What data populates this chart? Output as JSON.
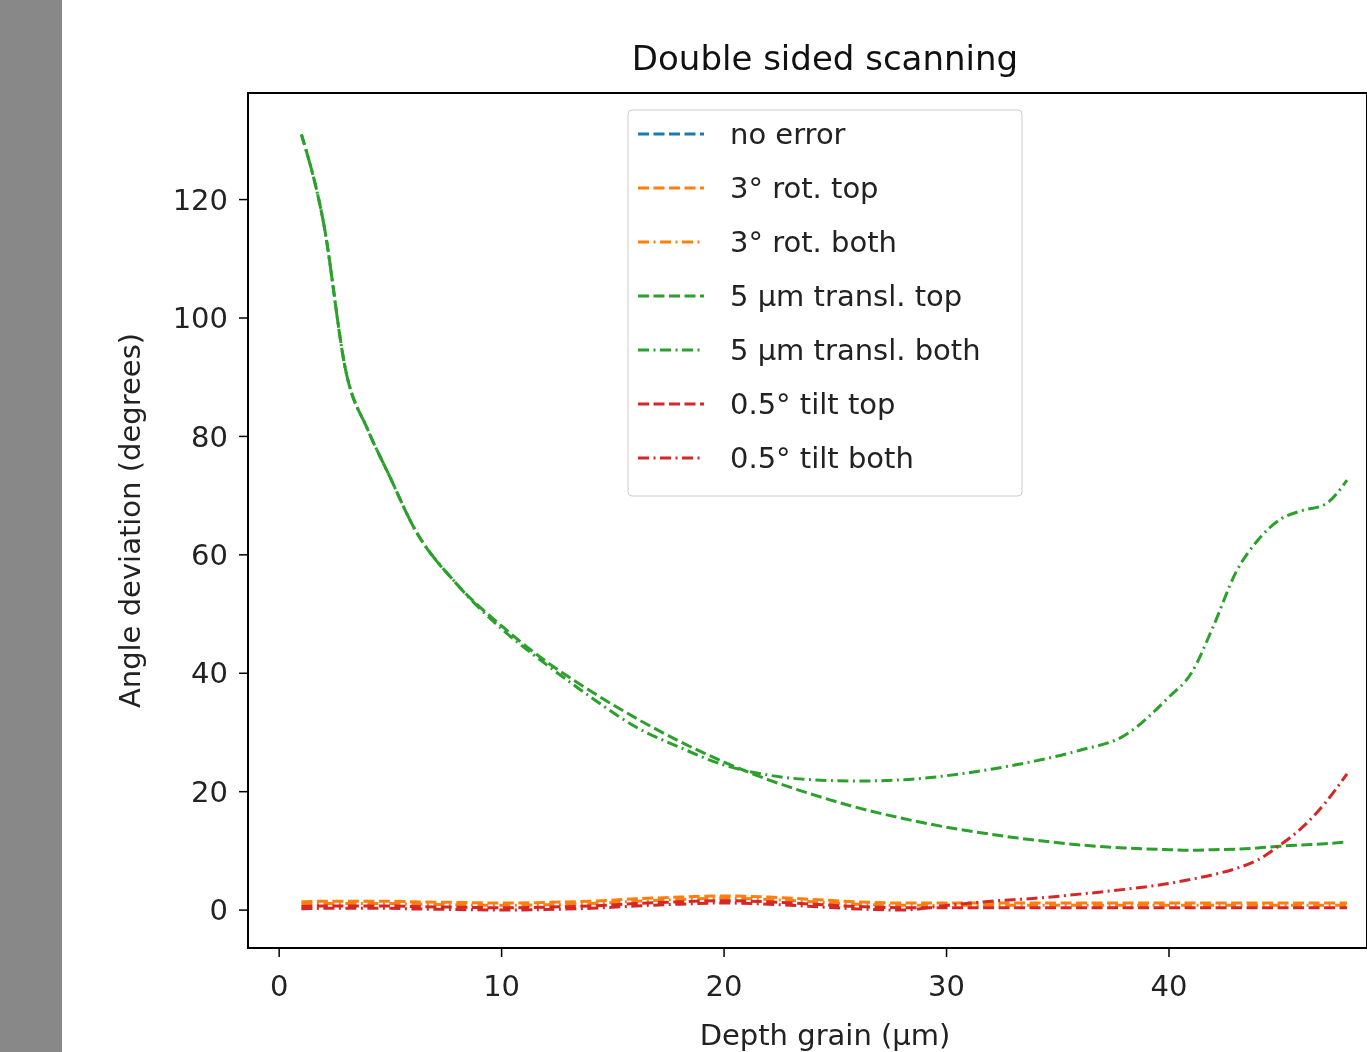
{
  "chart_data": {
    "type": "line",
    "title": "Double sided scanning",
    "xlabel": "Depth grain (μm)",
    "ylabel": "Angle deviation (degrees)",
    "xlim": [
      -1.4,
      48.9
    ],
    "ylim": [
      -6.4,
      138
    ],
    "xticks": [
      0,
      10,
      20,
      30,
      40
    ],
    "yticks": [
      0,
      20,
      40,
      60,
      80,
      100,
      120
    ],
    "grid": false,
    "legend": "top",
    "marker": "none",
    "x": [
      1,
      2,
      3,
      4,
      5,
      6,
      8,
      10,
      12,
      14,
      16,
      18,
      20,
      22,
      24,
      26,
      28,
      30,
      32,
      34,
      36,
      38,
      40,
      41,
      42,
      43,
      44,
      45,
      46,
      47,
      48
    ],
    "series": [
      {
        "name": "no error",
        "color": "#1f77b4",
        "line_style": "dashed",
        "values": [
          null,
          null,
          null,
          null,
          null,
          null,
          null,
          null,
          null,
          null,
          null,
          null,
          null,
          null,
          null,
          null,
          null,
          null,
          null,
          null,
          null,
          null,
          null,
          null,
          null,
          null,
          null,
          null,
          null,
          null,
          null
        ]
      },
      {
        "name": "3° rot. top",
        "color": "#ff7f0e",
        "line_style": "dashed",
        "values": [
          1.4,
          1.5,
          1.5,
          1.5,
          1.5,
          1.4,
          1.3,
          1.2,
          1.3,
          1.5,
          1.9,
          2.2,
          2.4,
          2.2,
          1.8,
          1.4,
          1.2,
          1.2,
          1.2,
          1.2,
          1.2,
          1.2,
          1.2,
          1.2,
          1.2,
          1.2,
          1.2,
          1.2,
          1.2,
          1.2,
          1.2
        ]
      },
      {
        "name": "3° rot. both",
        "color": "#ff7f0e",
        "line_style": "dashdot",
        "values": [
          1.0,
          1.1,
          1.1,
          1.1,
          1.1,
          1.0,
          0.9,
          0.8,
          0.9,
          1.1,
          1.5,
          1.8,
          2.0,
          1.8,
          1.4,
          1.0,
          0.8,
          0.8,
          0.8,
          0.8,
          0.8,
          0.8,
          0.8,
          0.8,
          0.8,
          0.8,
          0.8,
          0.8,
          0.8,
          0.8,
          0.8
        ]
      },
      {
        "name": "5 μm transl. top",
        "color": "#2ca02c",
        "line_style": "dashed",
        "values": [
          131,
          116,
          91,
          81,
          73,
          65,
          55,
          48,
          42,
          37,
          32.5,
          28.5,
          25,
          22,
          19.5,
          17.3,
          15.5,
          14,
          12.8,
          11.8,
          11,
          10.5,
          10.2,
          10.1,
          10.2,
          10.3,
          10.5,
          10.8,
          11,
          11.2,
          11.5
        ]
      },
      {
        "name": "5 μm transl. both",
        "color": "#2ca02c",
        "line_style": "dashdot",
        "values": [
          131,
          116,
          91,
          81,
          73,
          65,
          55,
          47.5,
          41.5,
          36,
          31,
          27.5,
          24.5,
          22.8,
          22,
          21.8,
          22,
          22.7,
          23.8,
          25.2,
          27,
          29.5,
          36,
          40,
          48,
          57,
          62.5,
          66,
          67.5,
          68.5,
          72.6
        ]
      },
      {
        "name": "0.5° tilt top",
        "color": "#d62728",
        "line_style": "dashed",
        "values": [
          0.6,
          0.7,
          0.7,
          0.7,
          0.7,
          0.6,
          0.5,
          0.4,
          0.5,
          0.7,
          1.1,
          1.4,
          1.6,
          1.4,
          1.0,
          0.6,
          0.4,
          0.4,
          0.4,
          0.4,
          0.4,
          0.4,
          0.4,
          0.4,
          0.4,
          0.4,
          0.4,
          0.4,
          0.4,
          0.4,
          0.4
        ]
      },
      {
        "name": "0.5° tilt both",
        "color": "#d62728",
        "line_style": "dashdot",
        "values": [
          0.2,
          0.3,
          0.3,
          0.3,
          0.3,
          0.2,
          0.1,
          0.0,
          0.1,
          0.3,
          0.7,
          1.0,
          1.2,
          1.0,
          0.6,
          0.2,
          0.0,
          0.8,
          1.5,
          2,
          2.7,
          3.5,
          4.5,
          5.2,
          6,
          7,
          8.5,
          11,
          14,
          18,
          23
        ]
      }
    ]
  }
}
